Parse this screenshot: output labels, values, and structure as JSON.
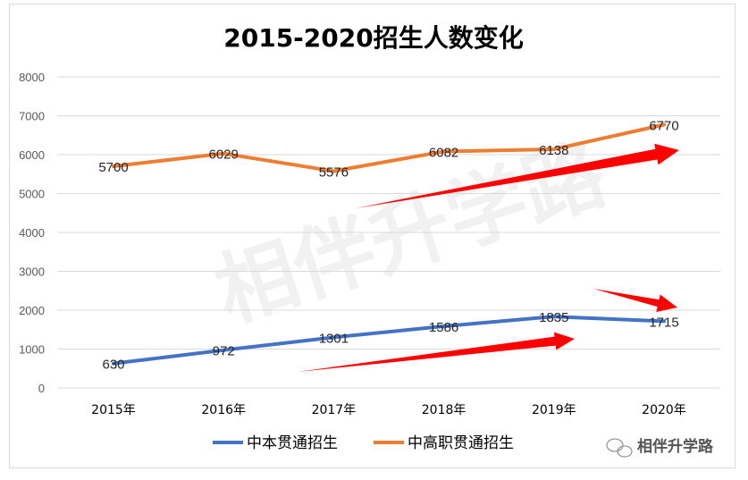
{
  "chart_data": {
    "type": "line",
    "title": "2015-2020招生人数变化",
    "categories": [
      "2015年",
      "2016年",
      "2017年",
      "2018年",
      "2019年",
      "2020年"
    ],
    "ylim": [
      0,
      8000
    ],
    "yticks": [
      "0",
      "1000",
      "2000",
      "3000",
      "4000",
      "5000",
      "6000",
      "7000",
      "8000"
    ],
    "grid": true,
    "legend_position": "bottom",
    "series": [
      {
        "name": "中本贯通招生",
        "color": "#4472c4",
        "values": [
          630,
          972,
          1301,
          1586,
          1835,
          1715
        ],
        "labels": [
          "630",
          "972",
          "1301",
          "1586",
          "1835",
          "1715"
        ]
      },
      {
        "name": "中高职贯通招生",
        "color": "#ed7d31",
        "values": [
          5700,
          6029,
          5576,
          6082,
          6138,
          6770
        ],
        "labels": [
          "5700",
          "6029",
          "5576",
          "6082",
          "6138",
          "6770"
        ]
      }
    ],
    "annotations": {
      "arrow_color": "#ff0000",
      "count": 3
    }
  },
  "watermark": "相伴升学路",
  "brand": {
    "icon": "wechat-icon",
    "name": "相伴升学路"
  }
}
